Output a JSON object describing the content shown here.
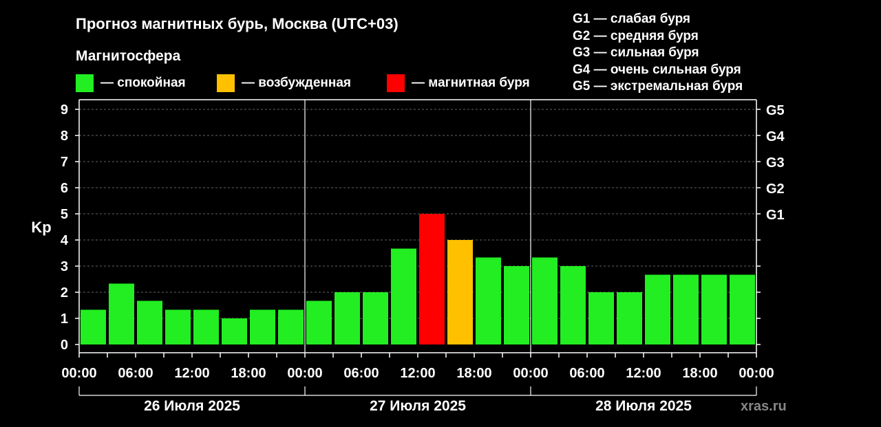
{
  "title": "Прогноз магнитных бурь, Москва (UTC+03)",
  "subtitle": "Магнитосфера",
  "legend": [
    {
      "label": "— спокойная",
      "color": "#22ee22"
    },
    {
      "label": "— возбужденная",
      "color": "#ffc000"
    },
    {
      "label": "— магнитная буря",
      "color": "#ff0000"
    }
  ],
  "storm_levels": [
    "G1 — слабая буря",
    "G2 — средняя буря",
    "G3 — сильная буря",
    "G4 — очень сильная буря",
    "G5 — экстремальная буря"
  ],
  "watermark": "xras.ru",
  "chart_data": {
    "type": "bar",
    "ylabel": "Kp",
    "ylim": [
      0,
      9
    ],
    "yticks": [
      0,
      1,
      2,
      3,
      4,
      5,
      6,
      7,
      8,
      9
    ],
    "right_ticks": [
      {
        "value": 5,
        "label": "G1"
      },
      {
        "value": 6,
        "label": "G2"
      },
      {
        "value": 7,
        "label": "G3"
      },
      {
        "value": 8,
        "label": "G4"
      },
      {
        "value": 9,
        "label": "G5"
      }
    ],
    "x_tick_labels": [
      "00:00",
      "06:00",
      "12:00",
      "18:00",
      "00:00",
      "06:00",
      "12:00",
      "18:00",
      "00:00",
      "06:00",
      "12:00",
      "18:00",
      "00:00"
    ],
    "days": [
      "26 Июля 2025",
      "27 Июля 2025",
      "28 Июля 2025"
    ],
    "bar_hours": 3,
    "grid": "dashed horizontal",
    "colors": {
      "calm": "#22ee22",
      "active": "#ffc000",
      "storm": "#ff0000"
    },
    "values": [
      1.33,
      2.33,
      1.67,
      1.33,
      1.33,
      1.0,
      1.33,
      1.33,
      1.67,
      2.0,
      2.0,
      3.67,
      5.0,
      4.0,
      3.33,
      3.0,
      3.33,
      3.0,
      2.0,
      2.0,
      2.67,
      2.67,
      2.67,
      2.67
    ],
    "status": [
      "calm",
      "calm",
      "calm",
      "calm",
      "calm",
      "calm",
      "calm",
      "calm",
      "calm",
      "calm",
      "calm",
      "calm",
      "storm",
      "active",
      "calm",
      "calm",
      "calm",
      "calm",
      "calm",
      "calm",
      "calm",
      "calm",
      "calm",
      "calm"
    ]
  }
}
